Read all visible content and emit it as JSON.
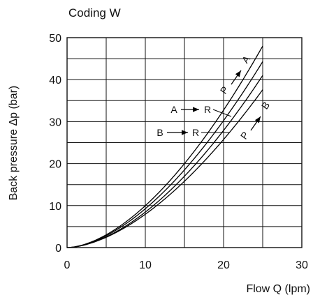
{
  "chart_data": {
    "type": "line",
    "title": "Coding W",
    "xlabel": "Flow Q (lpm)",
    "ylabel": "Back pressure  Δp (bar)",
    "xlim": [
      0,
      30
    ],
    "ylim": [
      0,
      50
    ],
    "x_ticks": [
      "0",
      "10",
      "20",
      "30"
    ],
    "y_ticks": [
      "0",
      "10",
      "20",
      "30",
      "40",
      "50"
    ],
    "grid": true,
    "series": [
      {
        "name": "P → A",
        "x": [
          0,
          5,
          10,
          15,
          20,
          25
        ],
        "y": [
          0,
          1.8,
          9.0,
          20.0,
          33.0,
          48.0
        ]
      },
      {
        "name": "A → R",
        "x": [
          0,
          5,
          10,
          15,
          20,
          25
        ],
        "y": [
          0,
          1.6,
          8.3,
          18.5,
          30.5,
          44.3
        ]
      },
      {
        "name": "P → B",
        "x": [
          0,
          5,
          10,
          15,
          20,
          25
        ],
        "y": [
          0,
          1.4,
          7.6,
          17.0,
          28.3,
          41.0
        ]
      },
      {
        "name": "B → R",
        "x": [
          0,
          5,
          10,
          15,
          20,
          25
        ],
        "y": [
          0,
          1.2,
          7.0,
          15.8,
          26.3,
          37.6
        ]
      }
    ],
    "annotations": [
      {
        "text": "P",
        "target": "P → A"
      },
      {
        "text": "A",
        "target": "P → A"
      },
      {
        "text": "A",
        "target": "A → R"
      },
      {
        "text": "R",
        "target": "A → R"
      },
      {
        "text": "B",
        "target": "B → R"
      },
      {
        "text": "R",
        "target": "B → R"
      },
      {
        "text": "P",
        "target": "P → B"
      },
      {
        "text": "B",
        "target": "P → B"
      }
    ]
  }
}
